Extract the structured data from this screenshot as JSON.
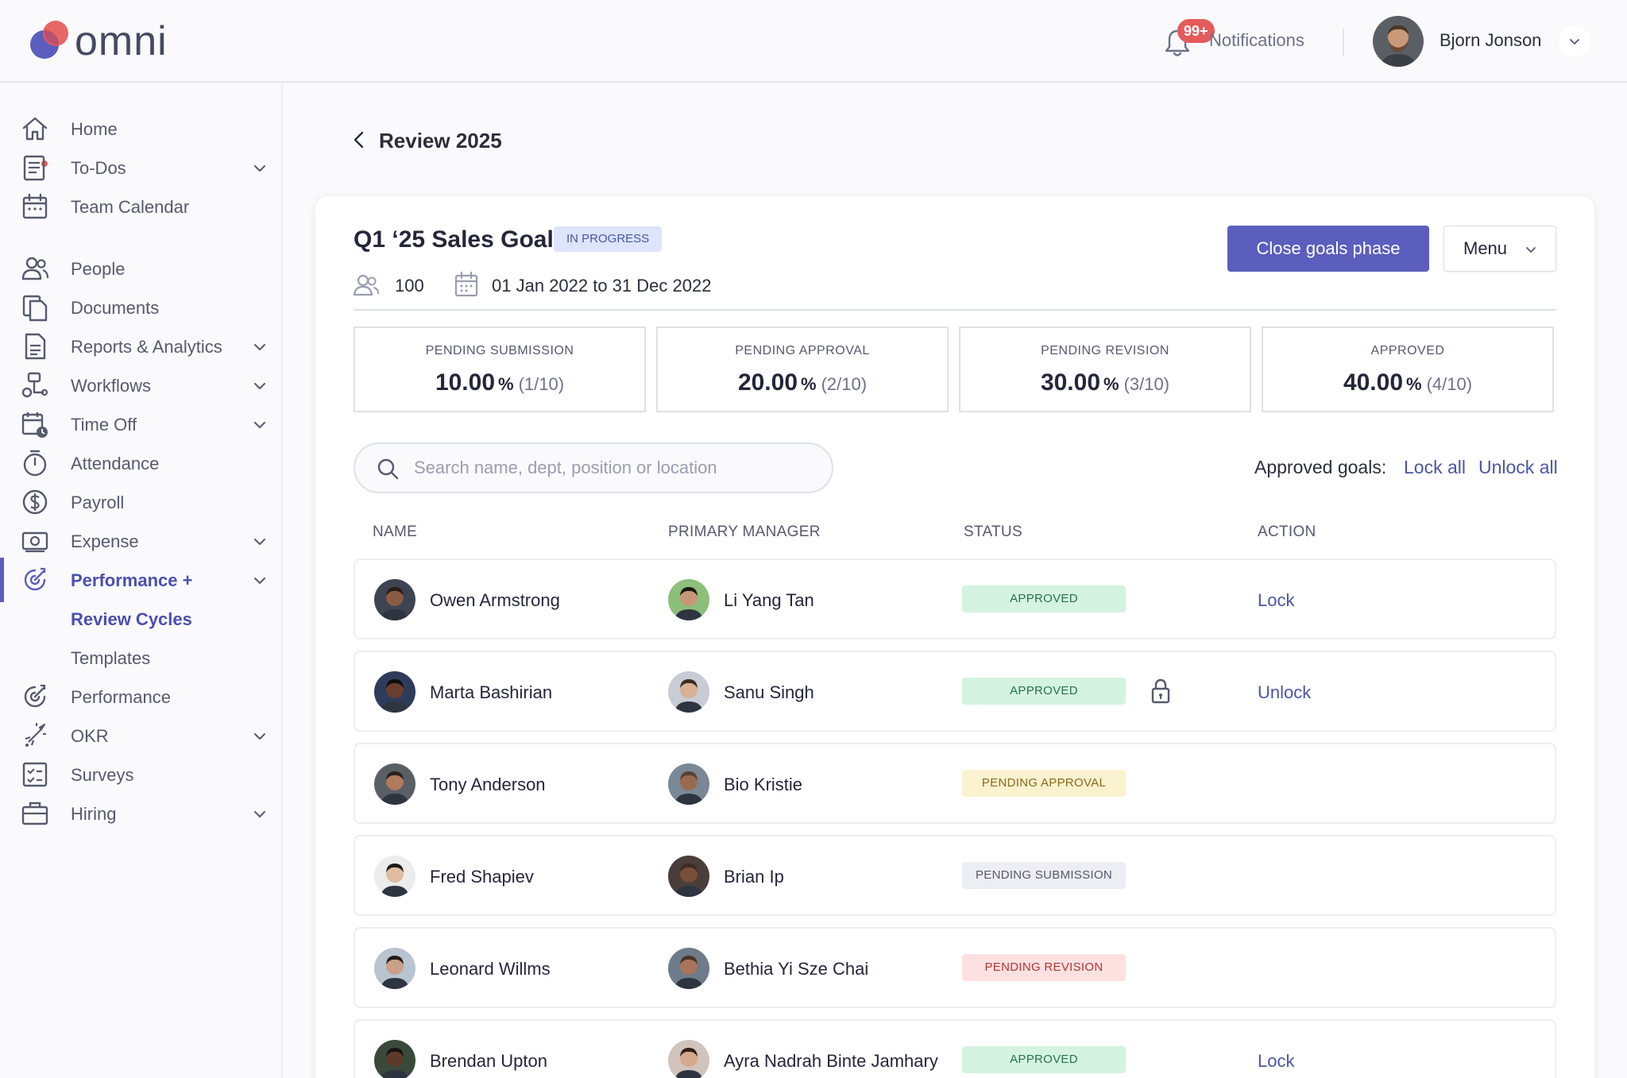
{
  "brand": {
    "name": "omni",
    "accent": "#5b5ebd",
    "logo_colors": [
      "#e55a5a",
      "#5b5ebd"
    ]
  },
  "topbar": {
    "notifications_label": "Notifications",
    "notifications_badge": "99+",
    "user_name": "Bjorn Jonson"
  },
  "sidebar": {
    "items": [
      {
        "label": "Home",
        "icon": "home-icon",
        "has_chevron": false
      },
      {
        "label": "To-Dos",
        "icon": "todo-list-icon",
        "has_chevron": true
      },
      {
        "label": "Team Calendar",
        "icon": "calendar-icon",
        "has_chevron": false
      },
      {
        "label": "People",
        "icon": "people-icon",
        "has_chevron": false
      },
      {
        "label": "Documents",
        "icon": "documents-icon",
        "has_chevron": false
      },
      {
        "label": "Reports & Analytics",
        "icon": "report-icon",
        "has_chevron": true
      },
      {
        "label": "Workflows",
        "icon": "workflow-icon",
        "has_chevron": true
      },
      {
        "label": "Time Off",
        "icon": "time-off-icon",
        "has_chevron": true
      },
      {
        "label": "Attendance",
        "icon": "stopwatch-icon",
        "has_chevron": false
      },
      {
        "label": "Payroll",
        "icon": "dollar-icon",
        "has_chevron": false
      },
      {
        "label": "Expense",
        "icon": "money-icon",
        "has_chevron": true
      },
      {
        "label": "Performance +",
        "icon": "performance-icon",
        "has_chevron": true,
        "active": true
      },
      {
        "label": "Review Cycles",
        "sub": true,
        "current": true
      },
      {
        "label": "Templates",
        "sub": true
      },
      {
        "label": "Performance",
        "icon": "performance-icon",
        "has_chevron": false
      },
      {
        "label": "OKR",
        "icon": "rocket-icon",
        "has_chevron": true
      },
      {
        "label": "Surveys",
        "icon": "survey-icon",
        "has_chevron": false
      },
      {
        "label": "Hiring",
        "icon": "briefcase-icon",
        "has_chevron": true
      }
    ]
  },
  "page": {
    "back_title": "Review 2025",
    "title": "Q1 ‘25 Sales Goals",
    "status": "IN PROGRESS",
    "people_count": "100",
    "date_range": "01 Jan 2022 to 31 Dec 2022",
    "primary_action": "Close goals phase",
    "menu_label": "Menu"
  },
  "stats": [
    {
      "label": "PENDING SUBMISSION",
      "value": "10.00",
      "unit": "%",
      "fraction": "(1/10)"
    },
    {
      "label": "PENDING APPROVAL",
      "value": "20.00",
      "unit": "%",
      "fraction": "(2/10)"
    },
    {
      "label": "PENDING REVISION",
      "value": "30.00",
      "unit": "%",
      "fraction": "(3/10)"
    },
    {
      "label": "APPROVED",
      "value": "40.00",
      "unit": "%",
      "fraction": "(4/10)"
    }
  ],
  "search": {
    "placeholder": "Search name, dept, position or location",
    "value": ""
  },
  "bulk": {
    "label": "Approved goals:",
    "lock_all": "Lock all",
    "unlock_all": "Unlock all"
  },
  "table": {
    "headers": [
      "NAME",
      "PRIMARY MANAGER",
      "STATUS",
      "ACTION"
    ],
    "rows": [
      {
        "name": "Owen Armstrong",
        "manager": "Li Yang Tan",
        "status": "APPROVED",
        "status_kind": "approved",
        "locked": false,
        "action": "Lock"
      },
      {
        "name": "Marta Bashirian",
        "manager": "Sanu Singh",
        "status": "APPROVED",
        "status_kind": "approved",
        "locked": true,
        "action": "Unlock"
      },
      {
        "name": "Tony Anderson",
        "manager": "Bio Kristie",
        "status": "PENDING APPROVAL",
        "status_kind": "pending-approval",
        "locked": false,
        "action": ""
      },
      {
        "name": "Fred Shapiev",
        "manager": "Brian Ip",
        "status": "PENDING SUBMISSION",
        "status_kind": "pending-submission",
        "locked": false,
        "action": ""
      },
      {
        "name": "Leonard Willms",
        "manager": "Bethia Yi Sze Chai",
        "status": "PENDING REVISION",
        "status_kind": "pending-revision",
        "locked": false,
        "action": ""
      },
      {
        "name": "Brendan Upton",
        "manager": "Ayra Nadrah Binte Jamhary",
        "status": "APPROVED",
        "status_kind": "approved",
        "locked": false,
        "action": "Lock"
      }
    ]
  }
}
